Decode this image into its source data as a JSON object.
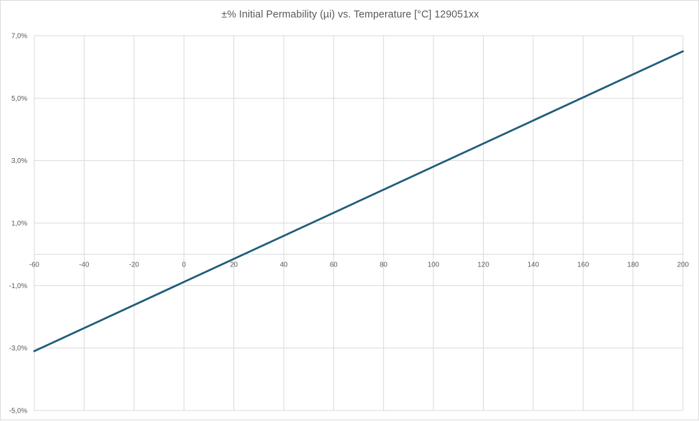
{
  "chart_data": {
    "type": "line",
    "title": "±% Initial Permability (µi) vs. Temperature [°C] 129051xx",
    "xlabel": "",
    "ylabel": "",
    "xlim": [
      -60,
      200
    ],
    "ylim": [
      -5,
      7
    ],
    "x_ticks": [
      -60,
      -40,
      -20,
      0,
      20,
      40,
      60,
      80,
      100,
      120,
      140,
      160,
      180,
      200
    ],
    "x_tick_labels": [
      "-60",
      "-40",
      "-20",
      "0",
      "20",
      "40",
      "60",
      "80",
      "100",
      "120",
      "140",
      "160",
      "180",
      "200"
    ],
    "y_ticks": [
      7,
      5,
      3,
      1,
      -1,
      -3,
      -5
    ],
    "y_tick_labels": [
      "7,0%",
      "5,0%",
      "3,0%",
      "1,0%",
      "-1,0%",
      "-3,0%",
      "-5,0%"
    ],
    "grid": true,
    "legend": "none",
    "series": [
      {
        "color": "#1f5c7a",
        "x": [
          -60,
          200
        ],
        "y": [
          -3.1,
          6.5
        ]
      }
    ]
  }
}
